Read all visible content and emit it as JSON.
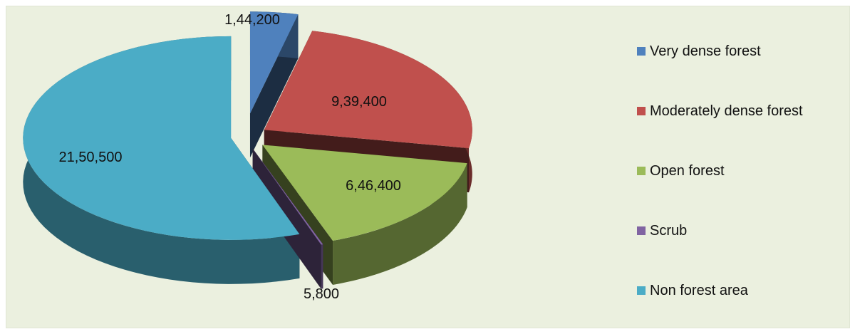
{
  "chart_data": {
    "type": "pie",
    "title": "",
    "style": "3d-exploded",
    "legend_position": "right",
    "slices": [
      {
        "name": "Very dense forest",
        "value": 144200,
        "label": "1,44,200",
        "color": "#4f81bd"
      },
      {
        "name": "Moderately dense forest",
        "value": 939400,
        "label": "9,39,400",
        "color": "#c0504d"
      },
      {
        "name": "Open forest",
        "value": 646400,
        "label": "6,46,400",
        "color": "#9bbb59"
      },
      {
        "name": "Scrub",
        "value": 5800,
        "label": "5,800",
        "color": "#8064a2"
      },
      {
        "name": "Non forest area",
        "value": 2150500,
        "label": "21,50,500",
        "color": "#4bacc6"
      }
    ]
  }
}
